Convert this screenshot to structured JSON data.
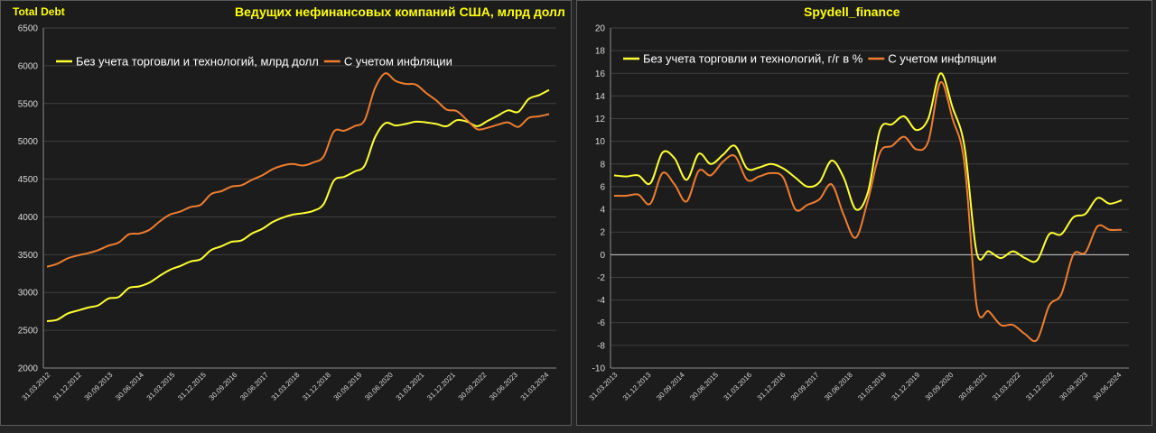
{
  "header": {
    "left_tag": "Total Debt",
    "left_title": "Ведущих нефинансовых компаний США, млрд долл",
    "right_title": "Spydell_finance"
  },
  "colors": {
    "series1": "#ffff33",
    "series2": "#ed7d31",
    "grid": "#3e3e3e",
    "zero": "#d0d0d0"
  },
  "chart_data": [
    {
      "type": "line",
      "title": "",
      "ylim": [
        2000,
        6500
      ],
      "yticks": [
        2000,
        2500,
        3000,
        3500,
        4000,
        4500,
        5000,
        5500,
        6000,
        6500
      ],
      "xlabels": [
        "31.03.2012",
        "31.12.2012",
        "30.09.2013",
        "30.06.2014",
        "31.03.2015",
        "31.12.2015",
        "30.09.2016",
        "30.06.2017",
        "31.03.2018",
        "31.12.2018",
        "30.09.2019",
        "30.06.2020",
        "31.03.2021",
        "31.12.2021",
        "30.09.2022",
        "30.06.2023",
        "31.03.2024"
      ],
      "legend_position": "top-left",
      "series": [
        {
          "name": "Без учета торговли и технологий, млрд долл",
          "color": "#ffff33",
          "values": [
            2620,
            2640,
            2720,
            2760,
            2800,
            2830,
            2920,
            2940,
            3060,
            3080,
            3130,
            3220,
            3300,
            3350,
            3410,
            3440,
            3560,
            3610,
            3670,
            3690,
            3780,
            3840,
            3930,
            3990,
            4030,
            4050,
            4080,
            4170,
            4480,
            4530,
            4600,
            4680,
            5050,
            5240,
            5210,
            5230,
            5260,
            5250,
            5230,
            5200,
            5280,
            5260,
            5200,
            5270,
            5340,
            5410,
            5390,
            5560,
            5610,
            5680
          ]
        },
        {
          "name": "С учетом инфляции",
          "color": "#ed7d31",
          "values": [
            3340,
            3380,
            3450,
            3490,
            3520,
            3560,
            3620,
            3660,
            3770,
            3780,
            3830,
            3940,
            4030,
            4070,
            4130,
            4160,
            4300,
            4340,
            4400,
            4420,
            4490,
            4550,
            4630,
            4680,
            4700,
            4680,
            4720,
            4800,
            5130,
            5140,
            5200,
            5280,
            5700,
            5900,
            5800,
            5760,
            5750,
            5640,
            5540,
            5420,
            5400,
            5280,
            5160,
            5180,
            5220,
            5250,
            5190,
            5310,
            5330,
            5360
          ]
        }
      ]
    },
    {
      "type": "line",
      "title": "",
      "ylim": [
        -10,
        20
      ],
      "yticks": [
        -10,
        -8,
        -6,
        -4,
        -2,
        0,
        2,
        4,
        6,
        8,
        10,
        12,
        14,
        16,
        18,
        20
      ],
      "xlabels": [
        "31.03.2013",
        "31.12.2013",
        "30.09.2014",
        "30.06.2015",
        "31.03.2016",
        "31.12.2016",
        "30.09.2017",
        "30.06.2018",
        "31.03.2019",
        "31.12.2019",
        "30.09.2020",
        "30.06.2021",
        "31.03.2022",
        "31.12.2022",
        "30.09.2023",
        "30.06.2024"
      ],
      "legend_position": "top-left",
      "series": [
        {
          "name": "Без учета торговли и технологий, г/г в %",
          "color": "#ffff33",
          "values": [
            7.0,
            6.9,
            7.0,
            6.3,
            9.0,
            8.5,
            6.6,
            8.9,
            8.0,
            8.8,
            9.6,
            7.6,
            7.7,
            8.0,
            7.6,
            6.8,
            6.0,
            6.4,
            8.3,
            6.8,
            4.0,
            5.5,
            11.0,
            11.5,
            12.2,
            11.0,
            12.0,
            16.0,
            13.0,
            9.5,
            0.2,
            0.3,
            -0.3,
            0.3,
            -0.3,
            -0.5,
            1.8,
            1.8,
            3.3,
            3.6,
            5.0,
            4.5,
            4.8
          ]
        },
        {
          "name": "С учетом инфляции",
          "color": "#ed7d31",
          "values": [
            5.2,
            5.2,
            5.3,
            4.5,
            7.2,
            6.2,
            4.7,
            7.4,
            7.0,
            8.2,
            8.7,
            6.6,
            6.9,
            7.2,
            6.8,
            4.0,
            4.4,
            4.9,
            6.2,
            3.5,
            1.5,
            4.8,
            9.0,
            9.6,
            10.4,
            9.3,
            10.0,
            15.2,
            12.0,
            8.0,
            -4.5,
            -5.0,
            -6.2,
            -6.2,
            -7.0,
            -7.5,
            -4.5,
            -3.5,
            0.0,
            0.2,
            2.5,
            2.2,
            2.2
          ]
        }
      ]
    }
  ]
}
